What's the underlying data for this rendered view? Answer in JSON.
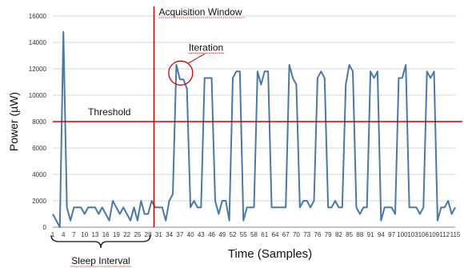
{
  "chart_data": {
    "type": "line",
    "title": "",
    "xlabel": "Time (Samples)",
    "ylabel": "Power (µW)",
    "ylim": [
      0,
      16000
    ],
    "yticks": [
      0,
      2000,
      4000,
      6000,
      8000,
      10000,
      12000,
      14000,
      16000
    ],
    "xticks": [
      "1",
      "4",
      "7",
      "10",
      "13",
      "16",
      "19",
      "22",
      "25",
      "28",
      "31",
      "34",
      "37",
      "40",
      "43",
      "46",
      "49",
      "52",
      "55",
      "58",
      "61",
      "64",
      "67",
      "70",
      "73",
      "76",
      "79",
      "82",
      "85",
      "88",
      "91",
      "94",
      "97",
      "100",
      "103",
      "106",
      "109",
      "112",
      "115"
    ],
    "x_range": [
      1,
      115
    ],
    "grid": "horizontal",
    "series": [
      {
        "color": "#4a78a8",
        "values": [
          1000,
          500,
          0,
          14800,
          1500,
          500,
          1500,
          1500,
          1500,
          1000,
          1500,
          1500,
          1500,
          1000,
          1500,
          1000,
          500,
          2000,
          1500,
          1000,
          1500,
          1000,
          500,
          1500,
          500,
          2000,
          1000,
          1000,
          2000,
          1500,
          1500,
          1500,
          500,
          2000,
          2500,
          12300,
          11200,
          11200,
          10500,
          1500,
          2000,
          1500,
          1500,
          11300,
          11300,
          11300,
          2000,
          1000,
          2000,
          2000,
          500,
          11300,
          11800,
          11800,
          500,
          1500,
          1500,
          1500,
          11800,
          10800,
          11800,
          11800,
          1500,
          1500,
          1500,
          1500,
          1500,
          12300,
          11300,
          10800,
          1500,
          2000,
          2000,
          1500,
          2000,
          11300,
          11800,
          11300,
          1500,
          1500,
          2000,
          1500,
          1500,
          10800,
          12300,
          11800,
          1500,
          1000,
          1500,
          1500,
          11800,
          11300,
          11800,
          500,
          1500,
          1500,
          1500,
          1000,
          11300,
          11300,
          12300,
          1500,
          1500,
          1500,
          1000,
          1500,
          11800,
          11300,
          11800,
          500,
          1500,
          1500,
          2000,
          1000,
          1500
        ]
      }
    ],
    "annotations": {
      "threshold": {
        "label": "Threshold",
        "y": 8000,
        "color": "#cc0000"
      },
      "acquisition_window": {
        "label": "Acquisition Window",
        "x": 30,
        "color": "#cc0000"
      },
      "iteration": {
        "label": "Iteration",
        "x": 37,
        "y": 11800,
        "color": "#cc0000"
      },
      "sleep_interval": {
        "label": "Sleep Interval",
        "x_start": 1,
        "x_end": 30
      }
    }
  }
}
